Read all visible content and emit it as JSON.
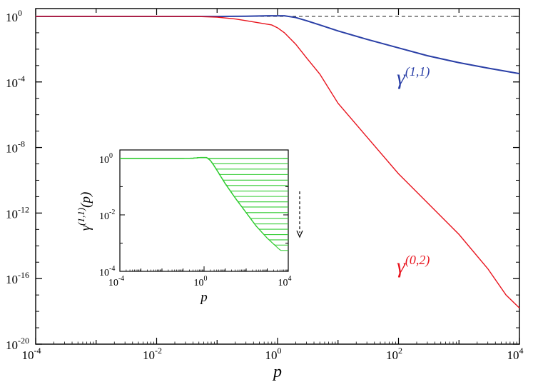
{
  "chart_data": [
    {
      "type": "line",
      "xlabel": "p",
      "ylabel": "",
      "xscale": "log",
      "yscale": "log",
      "xlim": [
        0.0001,
        10000
      ],
      "ylim": [
        1e-20,
        3
      ],
      "x_tick_labels": [
        {
          "base": "10",
          "exp": "-4",
          "value": 0.0001
        },
        {
          "base": "10",
          "exp": "-2",
          "value": 0.01
        },
        {
          "base": "10",
          "exp": "0",
          "value": 1
        },
        {
          "base": "10",
          "exp": "2",
          "value": 100
        },
        {
          "base": "10",
          "exp": "4",
          "value": 10000
        }
      ],
      "y_tick_labels": [
        {
          "base": "10",
          "exp": "0",
          "value": 1
        },
        {
          "base": "10",
          "exp": "-4",
          "value": 0.0001
        },
        {
          "base": "10",
          "exp": "-8",
          "value": 1e-08
        },
        {
          "base": "10",
          "exp": "-12",
          "value": 1e-12
        },
        {
          "base": "10",
          "exp": "-16",
          "value": 1e-16
        },
        {
          "base": "10",
          "exp": "-20",
          "value": 1e-20
        }
      ],
      "reference_line": {
        "y": 1,
        "style": "dashed",
        "color": "#333333"
      },
      "series": [
        {
          "name": "γ(1,1)",
          "label_base": "γ",
          "label_sup": "(1,1)",
          "color": "#2a3fa6",
          "x": [
            0.0001,
            0.01,
            0.1,
            0.3,
            0.7,
            1.3,
            2,
            3,
            5,
            10,
            30,
            100,
            300,
            1000,
            3000,
            10000
          ],
          "y": [
            1,
            1,
            1,
            1.02,
            1.08,
            1.08,
            0.85,
            0.55,
            0.3,
            0.13,
            0.04,
            0.012,
            0.004,
            0.0015,
            0.0007,
            0.00032
          ]
        },
        {
          "name": "γ(0,2)",
          "label_base": "γ",
          "label_sup": "(0,2)",
          "color": "#e8141e",
          "x": [
            0.0001,
            0.01,
            0.05,
            0.1,
            0.2,
            0.3,
            0.5,
            0.8,
            1,
            1.3,
            2,
            3,
            5,
            10,
            100,
            1000,
            3000,
            6000,
            10000
          ],
          "y": [
            1,
            1,
            0.98,
            0.9,
            0.7,
            0.55,
            0.4,
            0.3,
            0.2,
            0.1,
            0.02,
            0.003,
            0.0003,
            5e-06,
            2.5e-10,
            5e-14,
            4e-16,
            1e-17,
            1.6e-18
          ]
        }
      ]
    },
    {
      "type": "line",
      "role": "inset",
      "xlabel": "p",
      "ylabel_base": "γ",
      "ylabel_sup": "(1,1)",
      "ylabel_suffix": "(p)",
      "xscale": "log",
      "yscale": "log",
      "xlim": [
        0.0001,
        10000
      ],
      "ylim": [
        0.0001,
        2
      ],
      "x_tick_labels": [
        {
          "base": "10",
          "exp": "-4",
          "value": 0.0001
        },
        {
          "base": "10",
          "exp": "0",
          "value": 1
        },
        {
          "base": "10",
          "exp": "4",
          "value": 10000
        }
      ],
      "y_tick_labels": [
        {
          "base": "10",
          "exp": "0",
          "value": 1
        },
        {
          "base": "10",
          "exp": "-2",
          "value": 0.01
        },
        {
          "base": "10",
          "exp": "-4",
          "value": 0.0001
        }
      ],
      "color": "#33cc33",
      "arrow": {
        "direction": "down",
        "style": "dashed"
      },
      "plateau_values": [
        1,
        0.65,
        0.42,
        0.27,
        0.17,
        0.11,
        0.07,
        0.045,
        0.029,
        0.019,
        0.012,
        0.0075,
        0.0048,
        0.0031,
        0.002,
        0.0013,
        0.00085,
        0.00055
      ],
      "shared_curve": {
        "x": [
          0.0001,
          0.01,
          0.1,
          0.3,
          0.7,
          1.3,
          2,
          3,
          5,
          10,
          30,
          100,
          300,
          1000,
          3000,
          10000
        ],
        "y": [
          1,
          1,
          1,
          1.02,
          1.08,
          1.08,
          0.85,
          0.55,
          0.3,
          0.13,
          0.04,
          0.012,
          0.004,
          0.0015,
          0.0007,
          0.00032
        ]
      }
    }
  ]
}
